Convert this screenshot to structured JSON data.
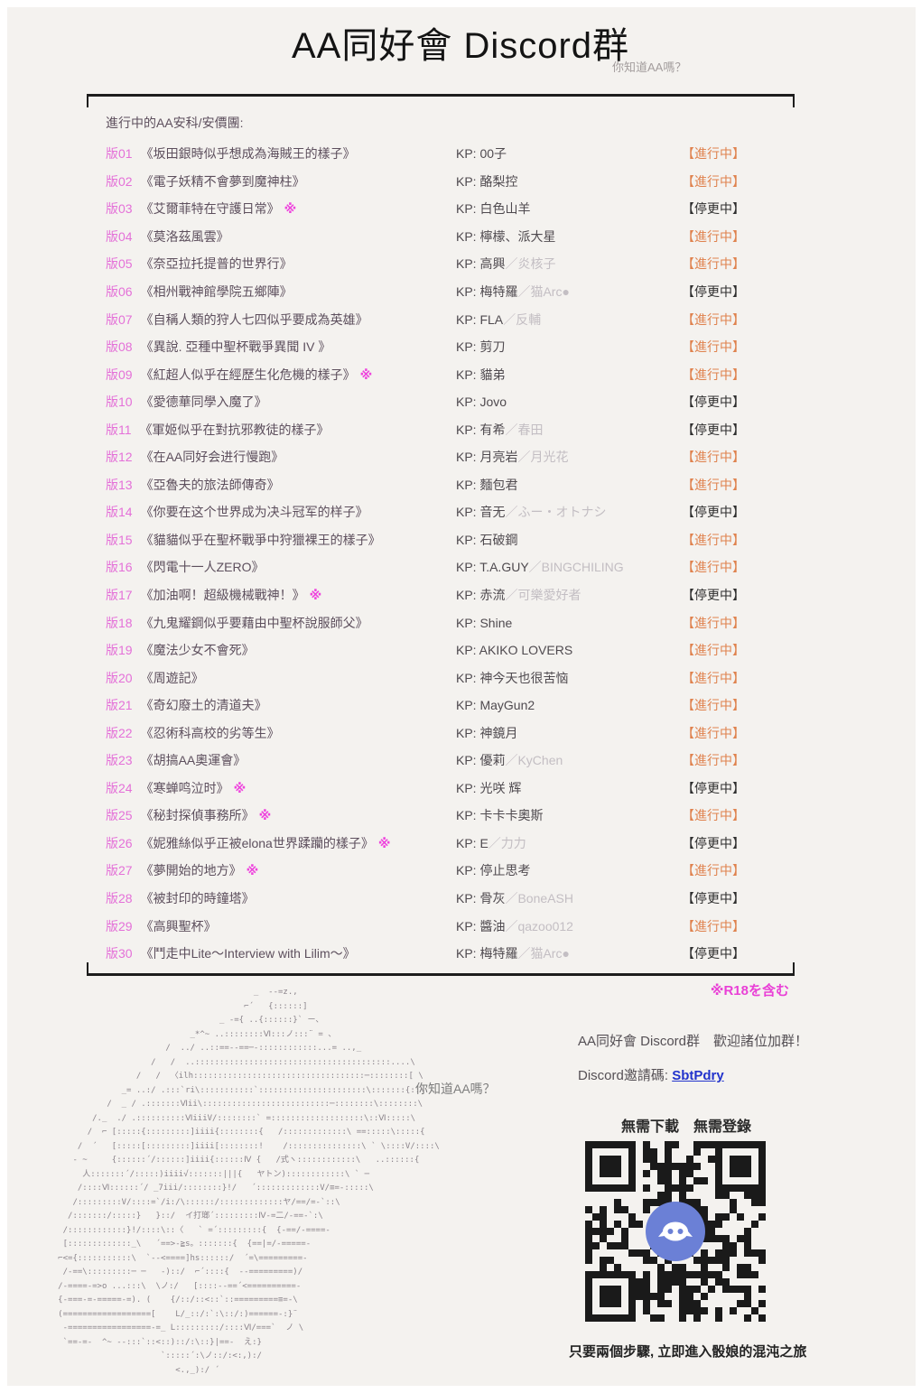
{
  "header": {
    "title": "AA同好會 Discord群",
    "tagline": "你知道AA嗎？"
  },
  "table": {
    "section_label": "進行中的AA安科/安價團:",
    "kp_prefix": "KP: ",
    "kp_separator": "／",
    "mark_symbol": "※",
    "status_ongoing": "【進行中】",
    "status_paused": "【停更中】",
    "rows": [
      {
        "no": "版01",
        "title": "《坂田銀時似乎想成為海賊王的樣子》",
        "mark": false,
        "kp1": "00子",
        "kp2": "",
        "state": "ongoing"
      },
      {
        "no": "版02",
        "title": "《電子妖精不會夢到魔神柱》",
        "mark": false,
        "kp1": "酪梨控",
        "kp2": "",
        "state": "ongoing"
      },
      {
        "no": "版03",
        "title": "《艾爾菲特在守護日常》",
        "mark": true,
        "kp1": "白色山羊",
        "kp2": "",
        "state": "paused"
      },
      {
        "no": "版04",
        "title": "《莫洛茲風雲》",
        "mark": false,
        "kp1": "檸檬、派大星",
        "kp2": "",
        "state": "ongoing"
      },
      {
        "no": "版05",
        "title": "《奈亞拉托提普的世界行》",
        "mark": false,
        "kp1": "高興",
        "kp2": "炎核子",
        "state": "ongoing"
      },
      {
        "no": "版06",
        "title": "《相州戰神館學院五鄉陣》",
        "mark": false,
        "kp1": "梅特羅",
        "kp2": "猫Arc●",
        "state": "paused"
      },
      {
        "no": "版07",
        "title": "《自稱人類的狩人七四似乎要成為英雄》",
        "mark": false,
        "kp1": "FLA",
        "kp2": "反輔",
        "state": "ongoing"
      },
      {
        "no": "版08",
        "title": "《異說. 亞種中聖杯戰爭異聞 IV 》",
        "mark": false,
        "kp1": "剪刀",
        "kp2": "",
        "state": "ongoing"
      },
      {
        "no": "版09",
        "title": "《紅超人似乎在經歷生化危機的樣子》",
        "mark": true,
        "kp1": "貓弟",
        "kp2": "",
        "state": "ongoing"
      },
      {
        "no": "版10",
        "title": "《愛德華同學入魔了》",
        "mark": false,
        "kp1": "Jovo",
        "kp2": "",
        "state": "paused"
      },
      {
        "no": "版11",
        "title": "《軍姬似乎在對抗邪教徒的樣子》",
        "mark": false,
        "kp1": "有希",
        "kp2": "春田",
        "state": "paused"
      },
      {
        "no": "版12",
        "title": "《在AA同好会进行慢跑》",
        "mark": false,
        "kp1": "月亮岩",
        "kp2": "月光花",
        "state": "ongoing"
      },
      {
        "no": "版13",
        "title": "《亞魯夫的旅法師傳奇》",
        "mark": false,
        "kp1": "麵包君",
        "kp2": "",
        "state": "ongoing"
      },
      {
        "no": "版14",
        "title": "《你要在这个世界成为决斗冠军的样子》",
        "mark": false,
        "kp1": "音无",
        "kp2": "ふー・オトナシ",
        "state": "paused"
      },
      {
        "no": "版15",
        "title": "《貓貓似乎在聖杯戰爭中狩獵裸王的樣子》",
        "mark": false,
        "kp1": "石破鋼",
        "kp2": "",
        "state": "ongoing"
      },
      {
        "no": "版16",
        "title": "《閃電十一人ZERO》",
        "mark": false,
        "kp1": "T.A.GUY",
        "kp2": "BINGCHILING",
        "state": "ongoing"
      },
      {
        "no": "版17",
        "title": "《加油啊！超級機械戰神！》",
        "mark": true,
        "kp1": "赤流",
        "kp2": "可樂愛好者",
        "state": "paused"
      },
      {
        "no": "版18",
        "title": "《九鬼耀鋼似乎要藉由中聖杯說服師父》",
        "mark": false,
        "kp1": "Shine",
        "kp2": "",
        "state": "ongoing"
      },
      {
        "no": "版19",
        "title": "《魔法少女不會死》",
        "mark": false,
        "kp1": "AKIKO LOVERS",
        "kp2": "",
        "state": "ongoing"
      },
      {
        "no": "版20",
        "title": "《周遊記》",
        "mark": false,
        "kp1": "神今天也很苦恼",
        "kp2": "",
        "state": "ongoing"
      },
      {
        "no": "版21",
        "title": "《奇幻廢土的清道夫》",
        "mark": false,
        "kp1": "MayGun2",
        "kp2": "",
        "state": "ongoing"
      },
      {
        "no": "版22",
        "title": "《忍術科高校的劣等生》",
        "mark": false,
        "kp1": "神鏡月",
        "kp2": "",
        "state": "ongoing"
      },
      {
        "no": "版23",
        "title": "《胡搞AA奧運會》",
        "mark": false,
        "kp1": "優莉",
        "kp2": "KyChen",
        "state": "ongoing"
      },
      {
        "no": "版24",
        "title": "《寒蝉鸣泣时》",
        "mark": true,
        "kp1": "光咲 辉",
        "kp2": "",
        "state": "paused"
      },
      {
        "no": "版25",
        "title": "《秘封探偵事務所》",
        "mark": true,
        "kp1": "卡卡卡奧斯",
        "kp2": "",
        "state": "ongoing"
      },
      {
        "no": "版26",
        "title": "《妮雅絲似乎正被elona世界蹂躪的樣子》",
        "mark": true,
        "kp1": "E",
        "kp2": "力力",
        "state": "paused"
      },
      {
        "no": "版27",
        "title": "《夢開始的地方》",
        "mark": true,
        "kp1": "停止思考",
        "kp2": "",
        "state": "ongoing"
      },
      {
        "no": "版28",
        "title": "《被封印的時鐘塔》",
        "mark": false,
        "kp1": "骨灰",
        "kp2": "BoneASH",
        "state": "paused"
      },
      {
        "no": "版29",
        "title": "《高興聖杯》",
        "mark": false,
        "kp1": "醬油",
        "kp2": "qazoo012",
        "state": "ongoing"
      },
      {
        "no": "版30",
        "title": "《鬥走中Lite～Interview with Lilim～》",
        "mark": false,
        "kp1": "梅特羅",
        "kp2": "猫Arc●",
        "state": "paused"
      }
    ]
  },
  "footer": {
    "r18_note": "※R18を含む",
    "aa_label": "你知道AA嗎？",
    "invite_line": "AA同好會 Discord群　歡迎諸位加群！",
    "invite_code_label": "Discord邀請碼: ",
    "invite_code": "SbtPdry",
    "no_download": "無需下載　無需登錄",
    "qr_caption": "只要兩個步驟, 立即進入骰娘的混沌之旅",
    "ascii_art": [
      "                                                  _  --=z.,",
      "                                                ⌐´   {::::::]",
      "                                           _ -={ ..{::::::}` ー、",
      "                                     _*^~ ..::::::::Ⅵ:::ノ:::¨ = 、",
      "                                /  ../ ..::==--==─-::::::::::::...= ..,_",
      "                             /   /  ..::::::::::::::::::::::::::::::::::::::::....\\",
      "                          /   /  〈ilh:::::::::::::::::::::::::::::::::::─::::::::[ \\",
      "                       _= ..:/ .:::`ri\\:::::::::::`::::::::::::::::::::::\\:::::::{::\\",
      "                    /  _ / .:::::::Ⅵii\\::::::::::::::::::::::::::─::::::::\\::::::::\\",
      "                 /._  ./ .::::::::::ⅥiiiV/::::::::` =:::::::::::::::::::\\::Ⅵ:::::\\",
      "                /  ⌐ [:::::{:::::::::]iiii{::::::::{   /:::::::::::::\\ ==:::::\\:::::{",
      "              /  ´   [:::::[:::::::::]iiii[::::::::!    /:::::::::::::::\\ ` \\::::V/::::\\",
      "             - ~     {::::::´/::::::]iiii{::::::Ⅳ {   /式ヽ::::::::::::\\   ..::::::{",
      "               人:::::::´/:::::)iiii√:::::::|||{   ヤトン)::::::::::::\\ ` ─",
      "              /::::Ⅵ::::::´/ _7iii/::::::::}!/   ´:::::::::::::V/≡=-:::::\\",
      "             /:::::::::V/::::=`/i:/\\::::::/:::::::::::::ヤ/==/=-`::\\",
      "            /:::::::/:::::}   }::/  イ打瑯´:::::::::Ⅳ-=二/-==-`:\\",
      "           /::::::::::::}!/::::\\::〈   ` =´:::::::::{  {-==/-====-",
      "           [:::::::::::::_\\   ´==>-≧s。:::::::{  {==|=/-=====-",
      "          ⌐<={:::::::::::\\  `--<====]hs::::::/  ´=\\=========-",
      "           /-==\\:::::::::─ ─   -)::/  ⌐´::::{  --=========)/",
      "          /-====-=>o ...:::\\  \\ノ:/   [::::--==´<==========-",
      "          {-===-=-=====-=). (    {/::/::<::`::=========≡=-\\",
      "          (==================[    L/_::/:`:\\::/:)======-:}¨",
      "           -=================-=_ L:::::::::/::::Ⅵ/===`  ノ \\",
      "           `==-=-  ^~ --:::`::<::)::/:\\::}|==-  え:}",
      "                               `:::::´:\\ノ::/:<:,):/",
      "                                  <.,_):/ ´"
    ]
  },
  "colors": {
    "status_ongoing": "#df824e",
    "status_paused": "#2f2f2f",
    "board_number": "#e470d8",
    "r18_note": "#e93fd6",
    "link": "#2233cc",
    "discord_logo": "#6b80d6",
    "sheet_background": "#f4f2ef"
  }
}
